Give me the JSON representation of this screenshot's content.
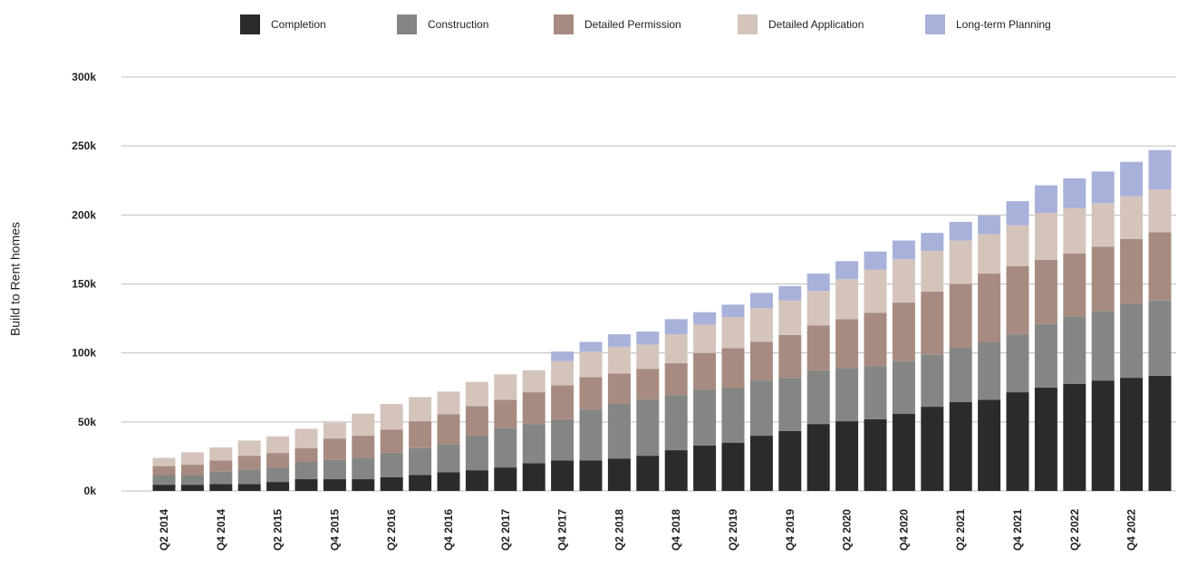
{
  "chart_data": {
    "type": "bar",
    "stacked": true,
    "ylabel": "Build to Rent homes",
    "xlabel": "",
    "ylim": [
      0,
      300000
    ],
    "y_ticks": [
      0,
      50000,
      100000,
      150000,
      200000,
      250000,
      300000
    ],
    "y_tick_labels": [
      "0k",
      "50k",
      "100k",
      "150k",
      "200k",
      "250k",
      "300k"
    ],
    "grid": "horizontal",
    "legend_position": "top",
    "categories": [
      "Q2 2014",
      "Q3 2014",
      "Q4 2014",
      "Q1 2015",
      "Q2 2015",
      "Q3 2015",
      "Q4 2015",
      "Q1 2016",
      "Q2 2016",
      "Q3 2016",
      "Q4 2016",
      "Q1 2017",
      "Q2 2017",
      "Q3 2017",
      "Q4 2017",
      "Q1 2018",
      "Q2 2018",
      "Q3 2018",
      "Q4 2018",
      "Q1 2019",
      "Q2 2019",
      "Q3 2019",
      "Q4 2019",
      "Q1 2020",
      "Q2 2020",
      "Q3 2020",
      "Q4 2020",
      "Q1 2021",
      "Q2 2021",
      "Q3 2021",
      "Q4 2021",
      "Q1 2022",
      "Q2 2022",
      "Q3 2022",
      "Q4 2022",
      "Q1 2023"
    ],
    "x_tick_labels": [
      "Q2 2014",
      "",
      "Q4 2014",
      "",
      "Q2 2015",
      "",
      "Q4 2015",
      "",
      "Q2 2016",
      "",
      "Q4 2016",
      "",
      "Q2 2017",
      "",
      "Q4 2017",
      "",
      "Q2 2018",
      "",
      "Q4 2018",
      "",
      "Q2 2019",
      "",
      "Q4 2019",
      "",
      "Q2 2020",
      "",
      "Q4 2020",
      "",
      "Q2 2021",
      "",
      "Q4 2021",
      "",
      "Q2 2022",
      "",
      "Q4 2022",
      ""
    ],
    "series": [
      {
        "name": "Completion",
        "color": "#2b2b2b",
        "values": [
          4500,
          4500,
          5000,
          5000,
          6500,
          8500,
          8500,
          8500,
          10000,
          11500,
          13500,
          15000,
          17000,
          20000,
          22000,
          22000,
          23500,
          25500,
          29500,
          33000,
          35000,
          40000,
          43500,
          48500,
          50500,
          52000,
          56000,
          61000,
          64500,
          66000,
          71500,
          75000,
          77500,
          80000,
          82000,
          83500
        ]
      },
      {
        "name": "Construction",
        "color": "#848684",
        "values": [
          7000,
          7000,
          9000,
          10500,
          10500,
          12500,
          14000,
          15500,
          17500,
          19500,
          20500,
          25000,
          28500,
          28500,
          30000,
          37000,
          39500,
          41000,
          40000,
          40500,
          39500,
          40000,
          38500,
          39000,
          38500,
          38500,
          38000,
          38000,
          39500,
          42000,
          42000,
          46000,
          49000,
          50500,
          54000,
          54500
        ]
      },
      {
        "name": "Detailed Permission",
        "color": "#a88b80",
        "values": [
          6500,
          7500,
          8000,
          10000,
          10500,
          10000,
          15500,
          16000,
          17000,
          19500,
          21500,
          21500,
          20500,
          23000,
          24500,
          23500,
          22000,
          22000,
          23000,
          26500,
          29000,
          28000,
          31000,
          32500,
          35500,
          38500,
          42500,
          45500,
          46000,
          49500,
          49500,
          46500,
          45500,
          46500,
          46500,
          49500
        ]
      },
      {
        "name": "Detailed Application",
        "color": "#d4c4bc",
        "values": [
          6000,
          9000,
          9500,
          11000,
          12000,
          14000,
          11500,
          16000,
          18500,
          17500,
          16500,
          17500,
          18500,
          16000,
          17500,
          18500,
          19500,
          17500,
          21000,
          20500,
          22500,
          24500,
          25000,
          25000,
          29000,
          31500,
          31500,
          29500,
          31500,
          28500,
          29500,
          34000,
          33000,
          31500,
          31000,
          31000
        ]
      },
      {
        "name": "Long-term Planning",
        "color": "#a8b1d9",
        "values": [
          0,
          0,
          0,
          0,
          0,
          0,
          0,
          0,
          0,
          0,
          0,
          0,
          0,
          0,
          7000,
          7000,
          9000,
          9500,
          11000,
          9000,
          9000,
          11000,
          10500,
          12500,
          13000,
          13000,
          13500,
          13000,
          13500,
          13500,
          17500,
          20000,
          21500,
          23000,
          25000,
          28500
        ]
      }
    ]
  }
}
